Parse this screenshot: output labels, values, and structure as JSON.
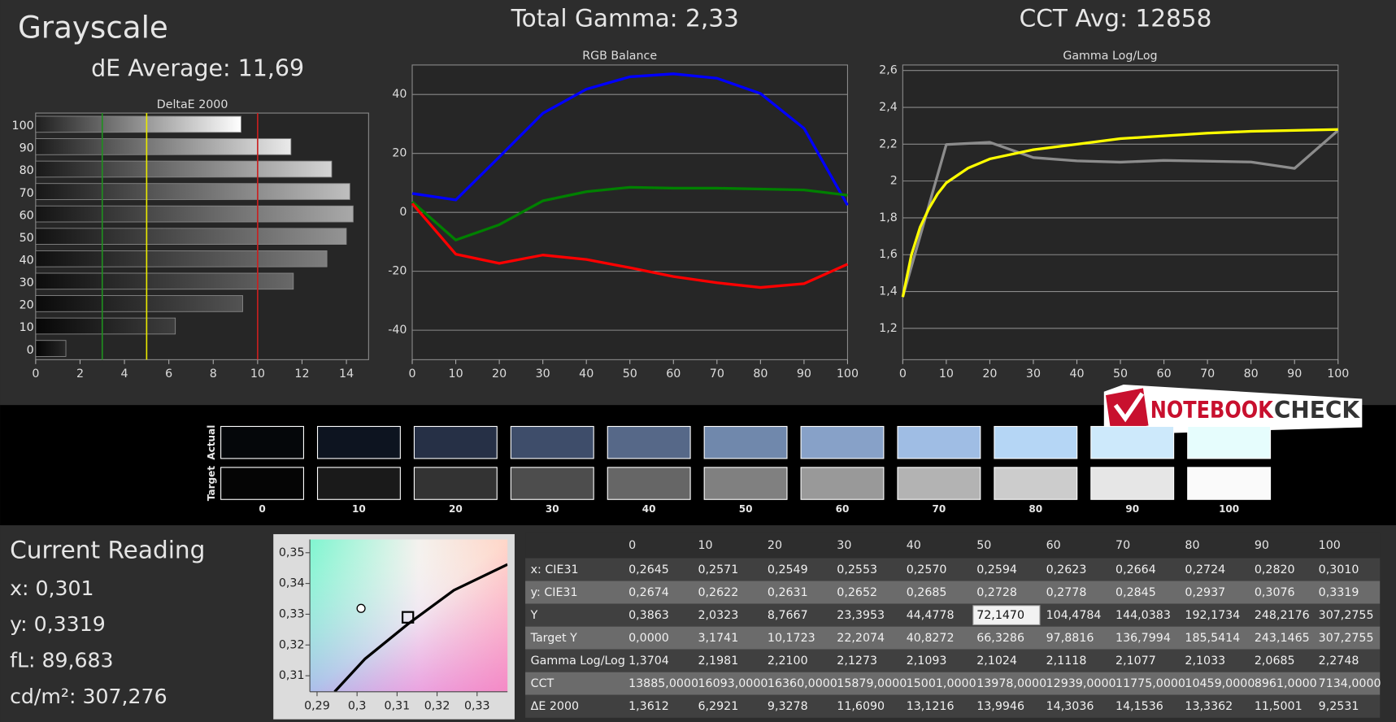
{
  "header": {
    "title": "Grayscale",
    "total_gamma": "Total Gamma: 2,33",
    "cct": "CCT Avg: 12858"
  },
  "logo": [
    "NOTEBOOK",
    "CHECK"
  ],
  "chart_data": [
    {
      "type": "bar",
      "orientation": "horizontal",
      "title": "DeltaE 2000",
      "subtitle": "dE Average: 11,69",
      "categories": [
        "0",
        "10",
        "20",
        "30",
        "40",
        "50",
        "60",
        "70",
        "80",
        "90",
        "100"
      ],
      "values": [
        1.3612,
        6.2921,
        9.3278,
        11.609,
        13.1216,
        13.9946,
        14.3036,
        14.1536,
        13.3362,
        11.5001,
        9.2531
      ],
      "xlim": [
        0,
        15
      ],
      "xticks": [
        0,
        2,
        4,
        6,
        8,
        10,
        12,
        14
      ],
      "reference_lines": [
        {
          "value": 3,
          "color": "#1f8f1f"
        },
        {
          "value": 5,
          "color": "#e8e800"
        },
        {
          "value": 10,
          "color": "#c82020"
        }
      ]
    },
    {
      "type": "line",
      "title": "RGB Balance",
      "x": [
        0,
        10,
        20,
        30,
        40,
        50,
        60,
        70,
        80,
        90,
        100
      ],
      "series": [
        {
          "color": "#0000ff",
          "values": [
            6.4,
            4.2,
            18.8,
            33.6,
            41.8,
            46,
            47,
            45.5,
            40.3,
            28.5,
            2.4
          ]
        },
        {
          "color": "#008000",
          "values": [
            3.6,
            -9.4,
            -4.2,
            3.9,
            7,
            8.5,
            8.2,
            8.2,
            7.9,
            7.6,
            5.8
          ]
        },
        {
          "color": "#ff0000",
          "values": [
            3,
            -14.2,
            -17.3,
            -14.5,
            -16,
            -18.8,
            -21.8,
            -23.9,
            -25.5,
            -24.2,
            -17.6
          ]
        }
      ],
      "xlim": [
        0,
        100
      ],
      "xticks": [
        0,
        10,
        20,
        30,
        40,
        50,
        60,
        70,
        80,
        90,
        100
      ],
      "ylim": [
        -50,
        50
      ],
      "yticks": [
        -40,
        -20,
        0,
        20,
        40
      ],
      "grid": true
    },
    {
      "type": "line",
      "title": "Gamma Log/Log",
      "x": [
        0,
        10,
        20,
        30,
        40,
        50,
        60,
        70,
        80,
        90,
        100
      ],
      "series": [
        {
          "color": "#8c8c8c",
          "values": [
            1.3704,
            2.1981,
            2.21,
            2.1273,
            2.1093,
            2.1024,
            2.1118,
            2.1077,
            2.1033,
            2.0685,
            2.2748
          ]
        },
        {
          "color": "#ffff00",
          "x": [
            0,
            2,
            4,
            6,
            8,
            10,
            15,
            20,
            30,
            40,
            50,
            60,
            70,
            80,
            90,
            100
          ],
          "values": [
            1.37,
            1.6,
            1.75,
            1.85,
            1.93,
            1.99,
            2.07,
            2.12,
            2.17,
            2.2,
            2.23,
            2.245,
            2.26,
            2.27,
            2.275,
            2.28
          ]
        }
      ],
      "xlim": [
        0,
        100
      ],
      "xticks": [
        0,
        10,
        20,
        30,
        40,
        50,
        60,
        70,
        80,
        90,
        100
      ],
      "ylim": [
        1.03,
        2.63
      ],
      "yticks": [
        {
          "value": 1.2,
          "label": "1,2"
        },
        {
          "value": 1.4,
          "label": "1,4"
        },
        {
          "value": 1.6,
          "label": "1,6"
        },
        {
          "value": 1.8,
          "label": "1,8"
        },
        2,
        {
          "value": 2.2,
          "label": "2,2"
        },
        {
          "value": 2.4,
          "label": "2,4"
        },
        {
          "value": 2.6,
          "label": "2,6"
        }
      ],
      "grid": true
    },
    {
      "type": "scatter",
      "series": [
        {
          "kind": "line",
          "color": "#000000",
          "x": [
            0.2944,
            0.302,
            0.3127,
            0.3242,
            0.3376
          ],
          "values": [
            0.3048,
            0.3155,
            0.3268,
            0.3378,
            0.3462
          ]
        },
        {
          "kind": "circle",
          "color": "#000000",
          "x": [
            0.301
          ],
          "values": [
            0.3319
          ]
        },
        {
          "kind": "square",
          "color": "#000000",
          "x": [
            0.3127
          ],
          "values": [
            0.329
          ]
        }
      ],
      "xlim": [
        0.2882,
        0.3376
      ],
      "xticks": [
        {
          "value": 0.29,
          "label": "0,29"
        },
        {
          "value": 0.3,
          "label": "0,3"
        },
        {
          "value": 0.31,
          "label": "0,31"
        },
        {
          "value": 0.32,
          "label": "0,32"
        },
        {
          "value": 0.33,
          "label": "0,33"
        }
      ],
      "ylim": [
        0.3048,
        0.3543
      ],
      "yticks": [
        {
          "value": 0.31,
          "label": "0,31"
        },
        {
          "value": 0.32,
          "label": "0,32"
        },
        {
          "value": 0.33,
          "label": "0,33"
        },
        {
          "value": 0.34,
          "label": "0,34"
        },
        {
          "value": 0.35,
          "label": "0,35"
        }
      ]
    }
  ],
  "swatches": {
    "row_labels": [
      "Actual",
      "Target"
    ],
    "labels": [
      "0",
      "10",
      "20",
      "30",
      "40",
      "50",
      "60",
      "70",
      "80",
      "90",
      "100"
    ],
    "actual": [
      "#05070a",
      "#0d1420",
      "#263046",
      "#3e4d6a",
      "#566888",
      "#7088ac",
      "#87a1c8",
      "#9fbde4",
      "#b5d6f5",
      "#cde9fb",
      "#e6fdfd"
    ],
    "target": [
      "#050505",
      "#1a1a1a",
      "#333333",
      "#4d4d4d",
      "#666666",
      "#808080",
      "#999999",
      "#b3b3b3",
      "#cccccc",
      "#e6e6e6",
      "#fafafa"
    ]
  },
  "current_reading": {
    "title": "Current Reading",
    "lines": [
      "x: 0,301",
      "y: 0,3319",
      "fL: 89,683",
      "cd/m²: 307,276"
    ]
  },
  "table": {
    "header": [
      "0",
      "10",
      "20",
      "30",
      "40",
      "50",
      "60",
      "70",
      "80",
      "90",
      "100"
    ],
    "rows": [
      [
        "x: CIE31",
        "0,2645",
        "0,2571",
        "0,2549",
        "0,2553",
        "0,2570",
        "0,2594",
        "0,2623",
        "0,2664",
        "0,2724",
        "0,2820",
        "0,3010"
      ],
      [
        "y: CIE31",
        "0,2674",
        "0,2622",
        "0,2631",
        "0,2652",
        "0,2685",
        "0,2728",
        "0,2778",
        "0,2845",
        "0,2937",
        "0,3076",
        "0,3319"
      ],
      [
        "Y",
        "0,3863",
        "2,0323",
        "8,7667",
        "23,3953",
        "44,4778",
        "72,1470",
        "104,4784",
        "144,0383",
        "192,1734",
        "248,2176",
        "307,2755"
      ],
      [
        "Target Y",
        "0,0000",
        "3,1741",
        "10,1723",
        "22,2074",
        "40,8272",
        "66,3286",
        "97,8816",
        "136,7994",
        "185,5414",
        "243,1465",
        "307,2755"
      ],
      [
        "Gamma Log/Log",
        "1,3704",
        "2,1981",
        "2,2100",
        "2,1273",
        "2,1093",
        "2,1024",
        "2,1118",
        "2,1077",
        "2,1033",
        "2,0685",
        "2,2748"
      ],
      [
        "CCT",
        "13885,0000",
        "16093,0000",
        "16360,0000",
        "15879,0000",
        "15001,0000",
        "13978,0000",
        "12939,0000",
        "11775,0000",
        "10459,0000",
        "8961,0000",
        "7134,0000"
      ],
      [
        "ΔE 2000",
        "1,3612",
        "6,2921",
        "9,3278",
        "11,6090",
        "13,1216",
        "13,9946",
        "14,3036",
        "14,1536",
        "13,3362",
        "11,5001",
        "9,2531"
      ]
    ],
    "selected_cell": {
      "row": 2,
      "col": 6
    }
  }
}
